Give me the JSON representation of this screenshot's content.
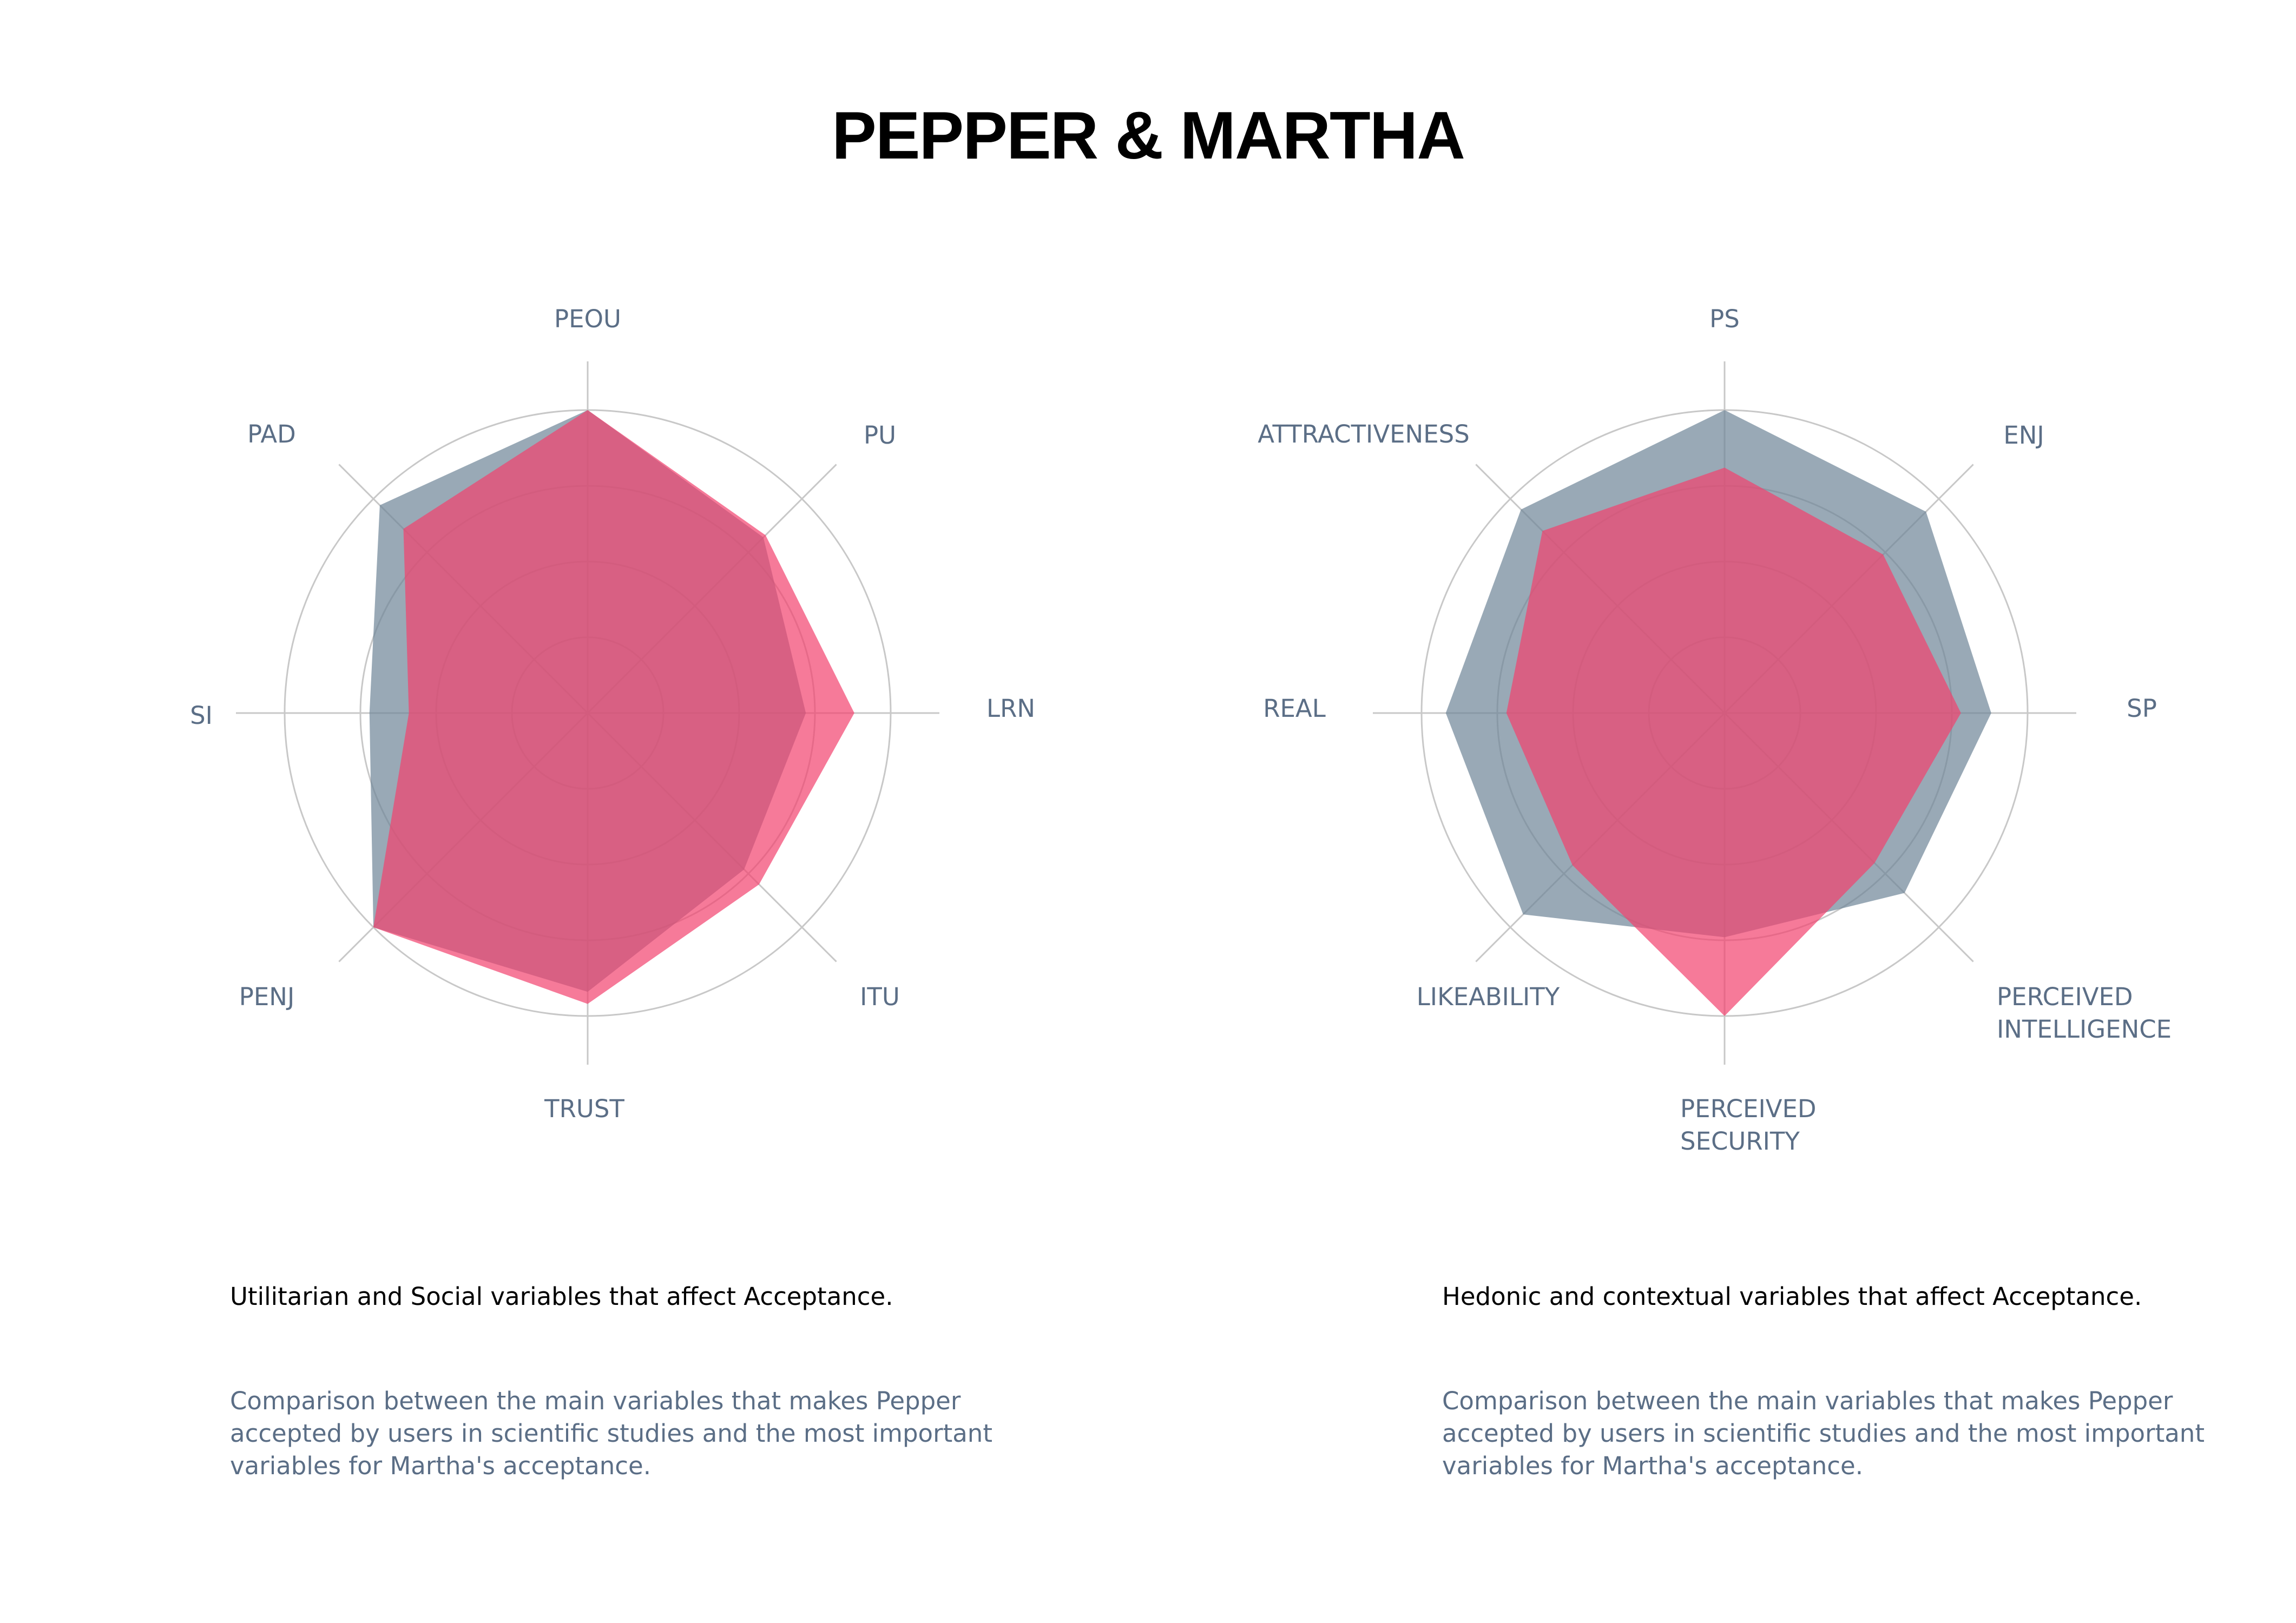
{
  "title": "PEPPER & MARTHA",
  "colors": {
    "pepper": "#6e8497",
    "martha": "#f2426e",
    "grid": "#c8c8c8",
    "label": "#5b6e86"
  },
  "chart_data": [
    {
      "type": "radar",
      "axes": [
        "PEOU",
        "PU",
        "LRN",
        "ITU",
        "TRUST",
        "PENJ",
        "SI",
        "PAD"
      ],
      "rmax": 1.0,
      "rings": 4,
      "series": [
        {
          "key": "pepper",
          "values": [
            1.0,
            0.82,
            0.72,
            0.73,
            0.92,
            1.0,
            0.72,
            0.97
          ]
        },
        {
          "key": "martha",
          "values": [
            1.0,
            0.83,
            0.88,
            0.8,
            0.96,
            1.0,
            0.59,
            0.86
          ]
        }
      ],
      "caption_title": "Utilitarian and Social variables that affect Acceptance.",
      "caption_desc": [
        "Comparison between the main variables that makes Pepper",
        "accepted by users in scientific studies and the most important",
        "variables for Martha's acceptance."
      ]
    },
    {
      "type": "radar",
      "axes": [
        "PS",
        "ENJ",
        "SP",
        "PERCEIVED INTELLIGENCE",
        "PERCEIVED SECURITY",
        "LIKEABILITY",
        "REAL",
        "ATTRACTIVENESS"
      ],
      "axis_label_lines": [
        [
          "PS"
        ],
        [
          "ENJ"
        ],
        [
          "SP"
        ],
        [
          "PERCEIVED",
          "INTELLIGENCE"
        ],
        [
          "PERCEIVED",
          "SECURITY"
        ],
        [
          "LIKEABILITY"
        ],
        [
          "REAL"
        ],
        [
          "ATTRACTIVENESS"
        ]
      ],
      "rmax": 1.0,
      "rings": 4,
      "series": [
        {
          "key": "pepper",
          "values": [
            1.0,
            0.94,
            0.88,
            0.84,
            0.74,
            0.94,
            0.92,
            0.95
          ]
        },
        {
          "key": "martha",
          "values": [
            0.81,
            0.74,
            0.78,
            0.7,
            1.0,
            0.71,
            0.72,
            0.85
          ]
        }
      ],
      "caption_title": "Hedonic and contextual variables that affect Acceptance.",
      "caption_desc": [
        "Comparison between the main variables that makes Pepper",
        "accepted by users in scientific studies and the most important",
        "variables for Martha's acceptance."
      ]
    }
  ]
}
